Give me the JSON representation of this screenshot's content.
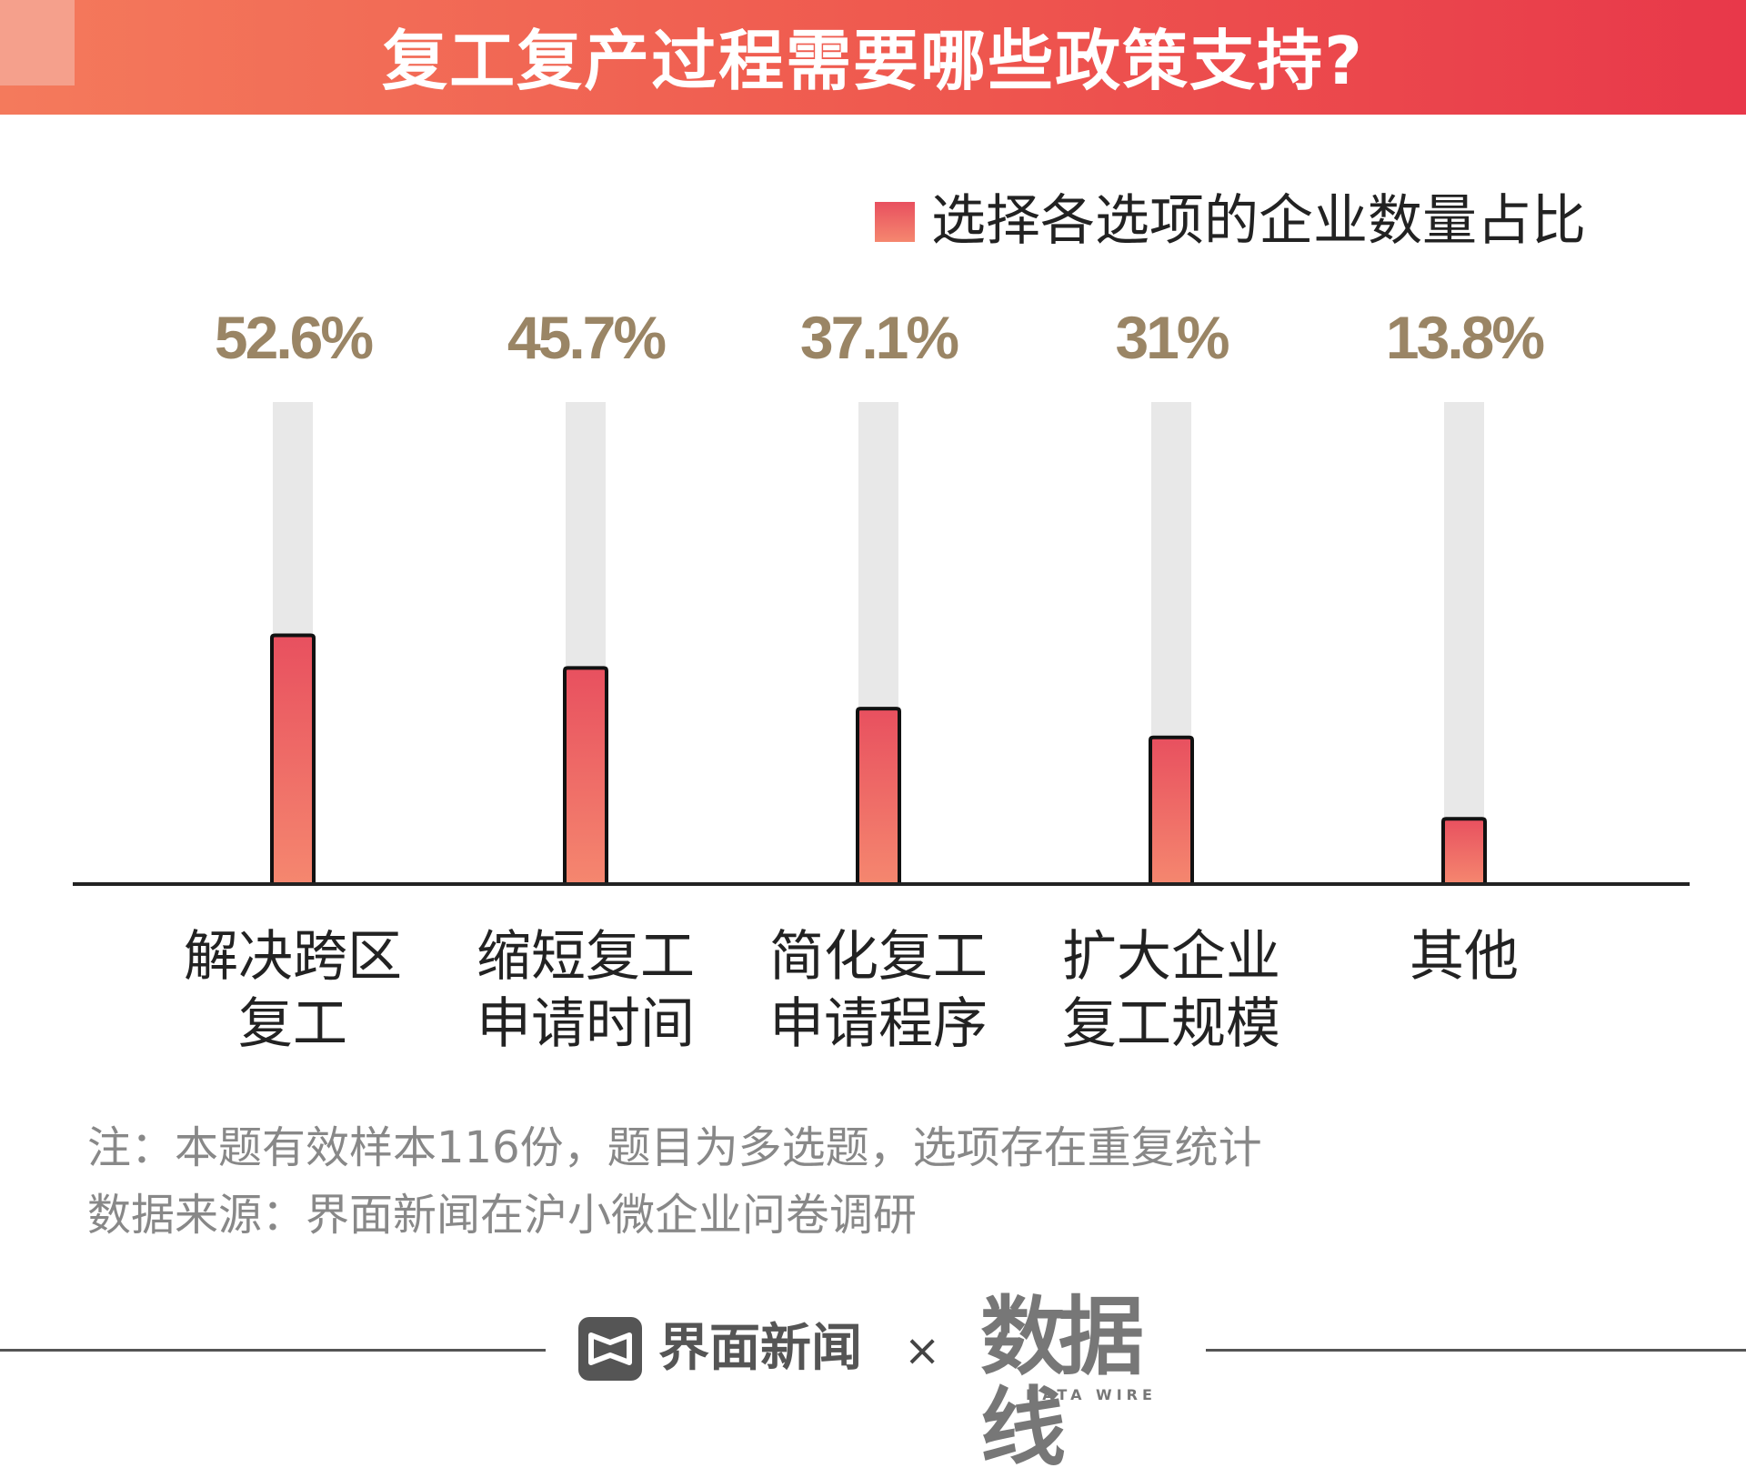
{
  "title": "复工复产过程需要哪些政策支持?",
  "legend": {
    "label": "选择各选项的企业数量占比"
  },
  "colors": {
    "bar_top": "#e8505f",
    "bar_bottom": "#f5876f",
    "value_label": "#9a8565",
    "track": "#e8e8e8",
    "axis": "#222222"
  },
  "chart_data": {
    "type": "bar",
    "categories": [
      [
        "解决跨区",
        "复工"
      ],
      [
        "缩短复工",
        "申请时间"
      ],
      [
        "简化复工",
        "申请程序"
      ],
      [
        "扩大企业",
        "复工规模"
      ],
      [
        "其他"
      ]
    ],
    "series": [
      {
        "name": "选择各选项的企业数量占比",
        "values": [
          52.6,
          45.7,
          37.1,
          31,
          13.8
        ]
      }
    ],
    "data_labels": [
      "52.6%",
      "45.7%",
      "37.1%",
      "31%",
      "13.8%"
    ],
    "ylim": [
      0,
      100
    ],
    "xlabel": "",
    "ylabel": "",
    "legend": "top-right",
    "grid": false
  },
  "notes": {
    "line1": "注：本题有效样本116份，题目为多选题，选项存在重复统计",
    "line2": "数据来源：界面新闻在沪小微企业问卷调研"
  },
  "footer": {
    "brand": "界面新闻",
    "cross": "×",
    "datawire_logo": "数据线",
    "datawire_sub": "DATA WIRE",
    "brand_icon": "jiemian-logo-icon"
  }
}
